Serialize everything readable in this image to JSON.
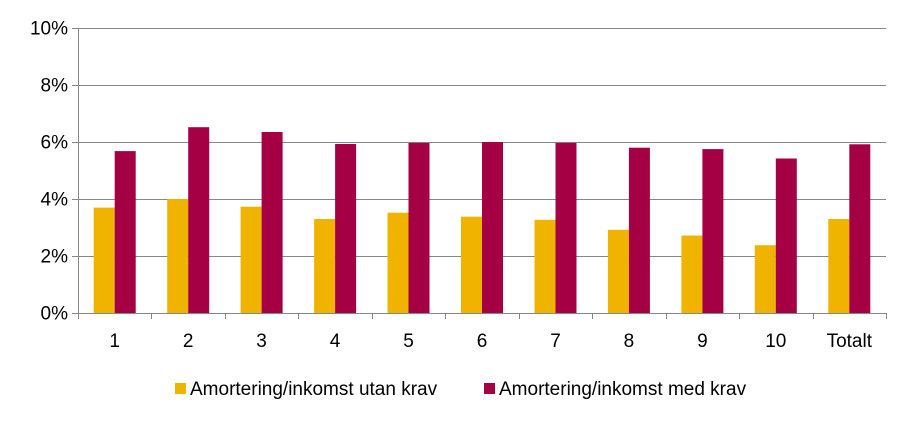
{
  "chart_data": {
    "type": "bar",
    "categories": [
      "1",
      "2",
      "3",
      "4",
      "5",
      "6",
      "7",
      "8",
      "9",
      "10",
      "Totalt"
    ],
    "series": [
      {
        "name": "Amortering/inkomst utan krav",
        "color": "#F0B400",
        "values": [
          3.7,
          4.0,
          3.73,
          3.3,
          3.52,
          3.38,
          3.27,
          2.92,
          2.72,
          2.38,
          3.3
        ]
      },
      {
        "name": "Amortering/inkomst med krav",
        "color": "#A50044",
        "values": [
          5.68,
          6.52,
          6.35,
          5.93,
          5.97,
          6.0,
          5.97,
          5.8,
          5.75,
          5.42,
          5.92
        ]
      }
    ],
    "ylim": [
      0,
      10
    ],
    "y_ticks": [
      "0%",
      "2%",
      "4%",
      "6%",
      "8%",
      "10%"
    ],
    "y_tick_values": [
      0,
      2,
      4,
      6,
      8,
      10
    ],
    "grid": true,
    "legend_position": "bottom"
  }
}
